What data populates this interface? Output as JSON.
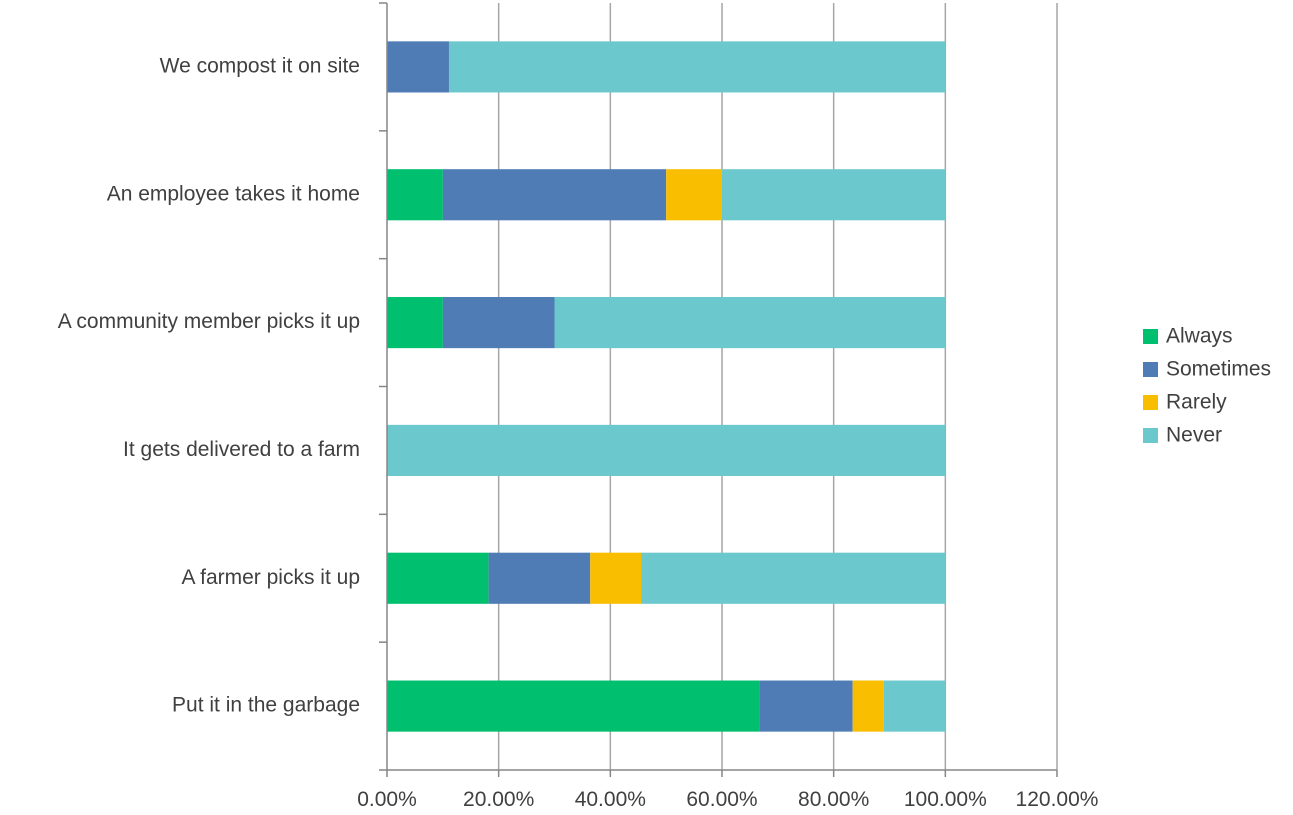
{
  "chart_data": {
    "type": "bar",
    "orientation": "horizontal",
    "stacked": true,
    "title": "",
    "xlabel": "",
    "ylabel": "",
    "xlim": [
      0,
      1.2
    ],
    "x_ticks": [
      0,
      0.2,
      0.4,
      0.6,
      0.8,
      1.0,
      1.2
    ],
    "x_tick_labels": [
      "0.00%",
      "20.00%",
      "40.00%",
      "60.00%",
      "80.00%",
      "100.00%",
      "120.00%"
    ],
    "grid": "vertical major gridlines",
    "legend_position": "right",
    "categories": [
      "Put it in the garbage",
      "A farmer picks it up",
      "It gets delivered to a farm",
      "A community member picks it up",
      "An employee takes it home",
      "We compost it on site"
    ],
    "series": [
      {
        "name": "Always",
        "color": "#00BF6F",
        "values": [
          0.667,
          0.182,
          0.0,
          0.1,
          0.1,
          0.0
        ]
      },
      {
        "name": "Sometimes",
        "color": "#507CB6",
        "values": [
          0.167,
          0.182,
          0.0,
          0.2,
          0.4,
          0.111
        ]
      },
      {
        "name": "Rarely",
        "color": "#F9BE00",
        "values": [
          0.056,
          0.091,
          0.0,
          0.0,
          0.1,
          0.0
        ]
      },
      {
        "name": "Never",
        "color": "#6BC8CD",
        "values": [
          0.11,
          0.545,
          1.0,
          0.7,
          0.4,
          0.889
        ]
      }
    ]
  }
}
